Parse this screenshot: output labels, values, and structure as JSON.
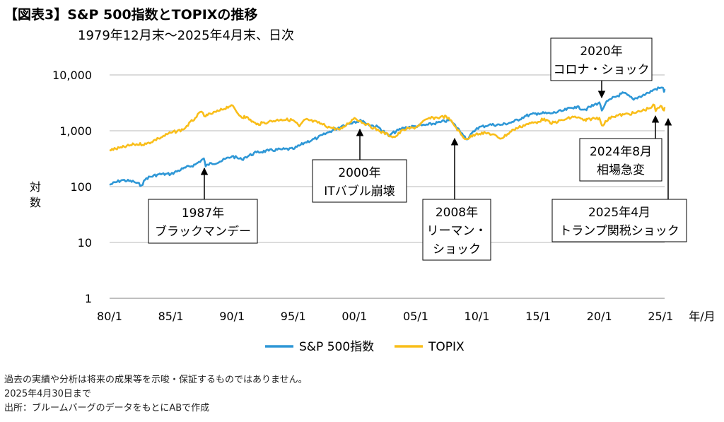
{
  "title": "【図表3】S&P 500指数とTOPIXの推移",
  "subtitle": "1979年12月末～2025年4月末、日次",
  "footnotes": [
    "過去の実績や分析は将来の成果等を示唆・保証するものではありません。",
    "2025年4月30日まで",
    "出所：ブルームバーグのデータをもとにABで作成"
  ],
  "chart_data": {
    "type": "line",
    "title": "S&P 500指数とTOPIXの推移",
    "ylabel": "対数",
    "xlabel": "年/月",
    "y_scale": "log",
    "ylim": [
      1,
      10000
    ],
    "y_ticks": [
      1,
      10,
      100,
      1000,
      10000
    ],
    "y_tick_labels": [
      "1",
      "10",
      "100",
      "1,000",
      "10,000"
    ],
    "x_range": [
      1980.0,
      2025.33
    ],
    "x_ticks": [
      1980,
      1985,
      1990,
      1995,
      2000,
      2005,
      2010,
      2015,
      2020,
      2025
    ],
    "x_tick_labels": [
      "80/1",
      "85/1",
      "90/1",
      "95/1",
      "00/1",
      "05/1",
      "10/1",
      "15/1",
      "20/1",
      "25/1"
    ],
    "grid": true,
    "legend_position": "bottom",
    "series": [
      {
        "name": "S&P 500指数",
        "color": "#2E97D6",
        "points": [
          [
            1980.0,
            108
          ],
          [
            1981.0,
            131
          ],
          [
            1982.0,
            122
          ],
          [
            1982.6,
            105
          ],
          [
            1983.0,
            142
          ],
          [
            1984.0,
            166
          ],
          [
            1985.0,
            168
          ],
          [
            1986.0,
            210
          ],
          [
            1987.0,
            248
          ],
          [
            1987.7,
            320
          ],
          [
            1987.85,
            230
          ],
          [
            1988.0,
            248
          ],
          [
            1989.0,
            280
          ],
          [
            1990.0,
            350
          ],
          [
            1990.8,
            305
          ],
          [
            1991.0,
            330
          ],
          [
            1992.0,
            410
          ],
          [
            1993.0,
            440
          ],
          [
            1994.0,
            465
          ],
          [
            1995.0,
            470
          ],
          [
            1996.0,
            620
          ],
          [
            1997.0,
            750
          ],
          [
            1998.0,
            970
          ],
          [
            1999.0,
            1230
          ],
          [
            2000.0,
            1460
          ],
          [
            2000.7,
            1510
          ],
          [
            2001.0,
            1320
          ],
          [
            2002.0,
            1150
          ],
          [
            2002.8,
            800
          ],
          [
            2003.0,
            880
          ],
          [
            2004.0,
            1130
          ],
          [
            2005.0,
            1210
          ],
          [
            2006.0,
            1280
          ],
          [
            2007.0,
            1420
          ],
          [
            2007.8,
            1560
          ],
          [
            2008.0,
            1400
          ],
          [
            2008.8,
            900
          ],
          [
            2009.2,
            700
          ],
          [
            2010.0,
            1120
          ],
          [
            2011.0,
            1280
          ],
          [
            2012.0,
            1280
          ],
          [
            2013.0,
            1450
          ],
          [
            2014.0,
            1850
          ],
          [
            2015.0,
            2060
          ],
          [
            2016.0,
            2040
          ],
          [
            2017.0,
            2270
          ],
          [
            2018.0,
            2690
          ],
          [
            2018.9,
            2400
          ],
          [
            2019.0,
            2500
          ],
          [
            2020.0,
            3230
          ],
          [
            2020.2,
            2300
          ],
          [
            2020.5,
            3100
          ],
          [
            2021.0,
            3750
          ],
          [
            2022.0,
            4770
          ],
          [
            2022.8,
            3600
          ],
          [
            2023.0,
            3850
          ],
          [
            2024.0,
            4770
          ],
          [
            2024.5,
            5500
          ],
          [
            2025.0,
            5880
          ],
          [
            2025.2,
            5900
          ],
          [
            2025.28,
            4990
          ],
          [
            2025.33,
            5570
          ]
        ]
      },
      {
        "name": "TOPIX",
        "color": "#F9BE1A",
        "points": [
          [
            1980.0,
            450
          ],
          [
            1981.0,
            500
          ],
          [
            1982.0,
            570
          ],
          [
            1983.0,
            580
          ],
          [
            1984.0,
            730
          ],
          [
            1985.0,
            920
          ],
          [
            1986.0,
            1050
          ],
          [
            1987.0,
            1700
          ],
          [
            1987.5,
            2200
          ],
          [
            1987.85,
            1800
          ],
          [
            1988.0,
            1900
          ],
          [
            1989.0,
            2300
          ],
          [
            1989.95,
            2880
          ],
          [
            1990.5,
            2000
          ],
          [
            1990.9,
            1700
          ],
          [
            1991.0,
            1850
          ],
          [
            1992.0,
            1300
          ],
          [
            1993.0,
            1450
          ],
          [
            1994.0,
            1600
          ],
          [
            1995.0,
            1550
          ],
          [
            1995.5,
            1200
          ],
          [
            1996.0,
            1600
          ],
          [
            1997.0,
            1400
          ],
          [
            1998.0,
            1150
          ],
          [
            1998.8,
            1050
          ],
          [
            1999.0,
            1100
          ],
          [
            2000.0,
            1700
          ],
          [
            2001.0,
            1300
          ],
          [
            2002.0,
            1000
          ],
          [
            2003.0,
            800
          ],
          [
            2003.3,
            770
          ],
          [
            2004.0,
            1050
          ],
          [
            2005.0,
            1150
          ],
          [
            2006.0,
            1650
          ],
          [
            2007.0,
            1750
          ],
          [
            2007.5,
            1800
          ],
          [
            2008.0,
            1400
          ],
          [
            2008.9,
            750
          ],
          [
            2009.2,
            720
          ],
          [
            2010.0,
            900
          ],
          [
            2011.0,
            900
          ],
          [
            2012.0,
            730
          ],
          [
            2013.0,
            1050
          ],
          [
            2014.0,
            1300
          ],
          [
            2015.0,
            1450
          ],
          [
            2015.5,
            1650
          ],
          [
            2016.0,
            1350
          ],
          [
            2017.0,
            1550
          ],
          [
            2018.0,
            1800
          ],
          [
            2018.9,
            1500
          ],
          [
            2019.0,
            1600
          ],
          [
            2020.0,
            1700
          ],
          [
            2020.2,
            1250
          ],
          [
            2021.0,
            1800
          ],
          [
            2022.0,
            1950
          ],
          [
            2023.0,
            2100
          ],
          [
            2024.0,
            2500
          ],
          [
            2024.5,
            2880
          ],
          [
            2024.6,
            2250
          ],
          [
            2025.0,
            2800
          ],
          [
            2025.28,
            2300
          ],
          [
            2025.33,
            2660
          ]
        ]
      }
    ],
    "annotations": [
      {
        "label": [
          "1987年",
          "ブラックマンデー"
        ],
        "x": 1987.8,
        "y": 230,
        "arrow": "up"
      },
      {
        "label": [
          "2000年",
          "ITバブル崩壊"
        ],
        "x": 2000.3,
        "y": 1500,
        "arrow": "up"
      },
      {
        "label": [
          "2008年",
          "リーマン・",
          "ショック"
        ],
        "x": 2008.7,
        "y": 900,
        "arrow": "up"
      },
      {
        "label": [
          "2020年",
          "コロナ・ショック"
        ],
        "x": 2020.2,
        "y": 2300,
        "arrow": "down"
      },
      {
        "label": [
          "2024年8月",
          "相場急変"
        ],
        "x": 2024.6,
        "y": 2250,
        "arrow": "up"
      },
      {
        "label": [
          "2025年4月",
          "トランプ関税ショック"
        ],
        "x": 2025.28,
        "y": 2300,
        "arrow": "up"
      }
    ]
  }
}
